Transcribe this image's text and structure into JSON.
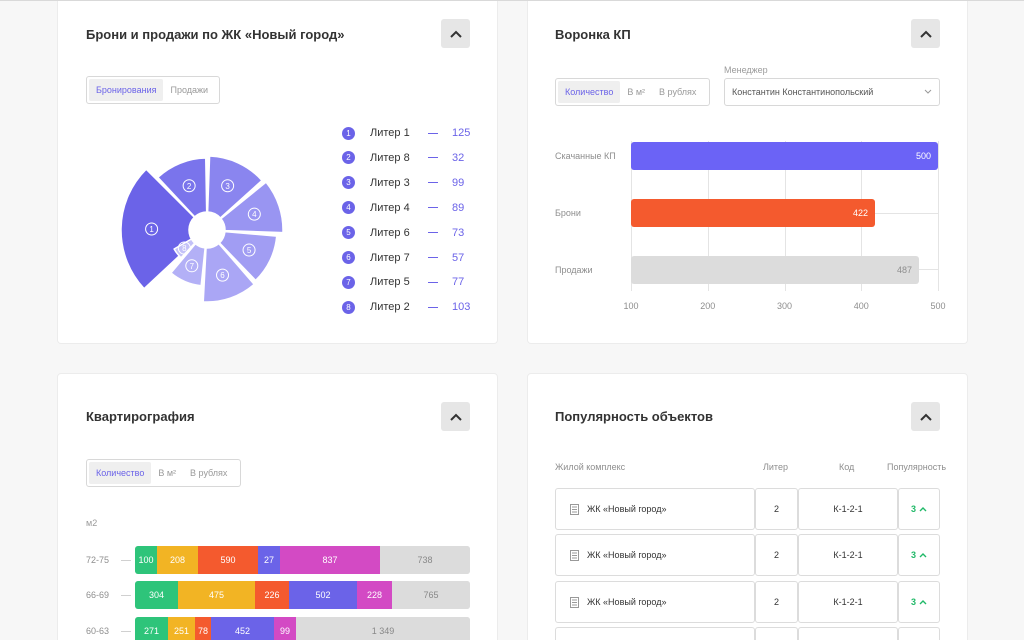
{
  "bookings_card": {
    "title": "Брони и продажи по ЖК «Новый город»",
    "tabs": [
      "Бронирования",
      "Продажи"
    ],
    "legend": [
      {
        "num": "1",
        "name": "Литер 1",
        "value": "125"
      },
      {
        "num": "2",
        "name": "Литер 8",
        "value": "32"
      },
      {
        "num": "3",
        "name": "Литер 3",
        "value": "99"
      },
      {
        "num": "4",
        "name": "Литер 4",
        "value": "89"
      },
      {
        "num": "5",
        "name": "Литер 6",
        "value": "73"
      },
      {
        "num": "6",
        "name": "Литер 7",
        "value": "57"
      },
      {
        "num": "7",
        "name": "Литер 5",
        "value": "77"
      },
      {
        "num": "8",
        "name": "Литер 2",
        "value": "103"
      }
    ],
    "pie_labels": [
      "1",
      "2",
      "3",
      "4",
      "5",
      "6",
      "7",
      "8"
    ],
    "colors": {
      "accent": "#6b63e8"
    }
  },
  "funnel_card": {
    "title": "Воронка КП",
    "tabs": [
      "Количество",
      "В м²",
      "В рублях"
    ],
    "manager_label": "Менеджер",
    "manager_value": "Константин Константинопольский"
  },
  "apartments_card": {
    "title": "Квартирография",
    "tabs": [
      "Количество",
      "В м²",
      "В рублях"
    ],
    "unit_label": "м2"
  },
  "popularity_card": {
    "title": "Популярность объектов",
    "headers": {
      "complex": "Жилой комплекс",
      "liter": "Литер",
      "code": "Код",
      "popularity": "Популярность"
    },
    "rows": [
      {
        "complex": "ЖК «Новый город»",
        "liter": "2",
        "code": "К-1-2-1",
        "popularity": "3"
      },
      {
        "complex": "ЖК «Новый город»",
        "liter": "2",
        "code": "К-1-2-1",
        "popularity": "3"
      },
      {
        "complex": "ЖК «Новый город»",
        "liter": "2",
        "code": "К-1-2-1",
        "popularity": "3"
      }
    ]
  },
  "chart_data": [
    {
      "type": "pie",
      "title": "Брони и продажи по ЖК «Новый город»",
      "categories": [
        "Литер 1",
        "Литер 8",
        "Литер 3",
        "Литер 4",
        "Литер 6",
        "Литер 7",
        "Литер 5",
        "Литер 2"
      ],
      "values": [
        125,
        32,
        99,
        89,
        73,
        57,
        77,
        103
      ]
    },
    {
      "type": "bar",
      "title": "Воронка КП",
      "categories": [
        "Скачанные КП",
        "Брони",
        "Продажи"
      ],
      "values": [
        500,
        422,
        487
      ],
      "value_labels": [
        "500",
        "422",
        "487"
      ],
      "colors": [
        "#6b63f6",
        "#f45a2e",
        "#dcdcdc"
      ],
      "x_ticks": [
        "100",
        "200",
        "300",
        "400",
        "500"
      ],
      "xlim": [
        100,
        500
      ]
    },
    {
      "type": "bar",
      "title": "Квартирография",
      "ylabel": "м2",
      "categories": [
        "72-75",
        "66-69",
        "60-63"
      ],
      "series": [
        {
          "values": [
            100,
            304,
            271
          ],
          "labels": [
            "100",
            "304",
            "271"
          ],
          "color": "#2ec47a"
        },
        {
          "values": [
            208,
            475,
            251
          ],
          "labels": [
            "208",
            "475",
            "251"
          ],
          "color": "#f2b424"
        },
        {
          "values": [
            590,
            226,
            78
          ],
          "labels": [
            "590",
            "226",
            "78"
          ],
          "color": "#f45a2e"
        },
        {
          "values": [
            27,
            502,
            452
          ],
          "labels": [
            "27",
            "502",
            "452"
          ],
          "color": "#6b63e8"
        },
        {
          "values": [
            837,
            228,
            99
          ],
          "labels": [
            "837",
            "228",
            "99"
          ],
          "color": "#d34ac4"
        },
        {
          "values": [
            738,
            765,
            1349
          ],
          "labels": [
            "738",
            "765",
            "1 349"
          ],
          "color": "#dcdcdc"
        }
      ]
    }
  ]
}
